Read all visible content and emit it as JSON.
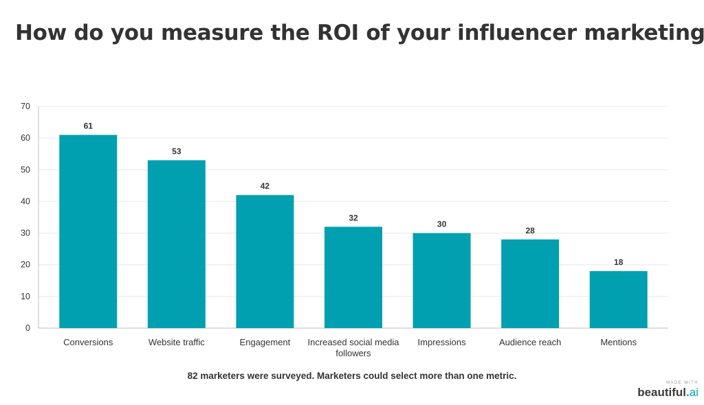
{
  "title": "How do you measure the ROI of your influencer marketing?",
  "caption": "82 marketers were surveyed. Marketers could select more than one metric.",
  "branding": {
    "made_with": "MADE WITH",
    "brand_name": "beautiful",
    "brand_dot": ".",
    "brand_suffix": "ai"
  },
  "colors": {
    "bar": "#00a0b0",
    "text": "#333333",
    "grid": "#e8e8e8",
    "axis": "#bdbdbd"
  },
  "chart_data": {
    "type": "bar",
    "title": "How do you measure the ROI of your influencer marketing?",
    "categories": [
      "Conversions",
      "Website traffic",
      "Engagement",
      "Increased social media followers",
      "Impressions",
      "Audience reach",
      "Mentions"
    ],
    "values": [
      61,
      53,
      42,
      32,
      30,
      28,
      18
    ],
    "xlabel": "",
    "ylabel": "",
    "ylim": [
      0,
      70
    ],
    "yticks": [
      0,
      10,
      20,
      30,
      40,
      50,
      60,
      70
    ],
    "grid": true,
    "legend": "none",
    "data_labels": true
  }
}
